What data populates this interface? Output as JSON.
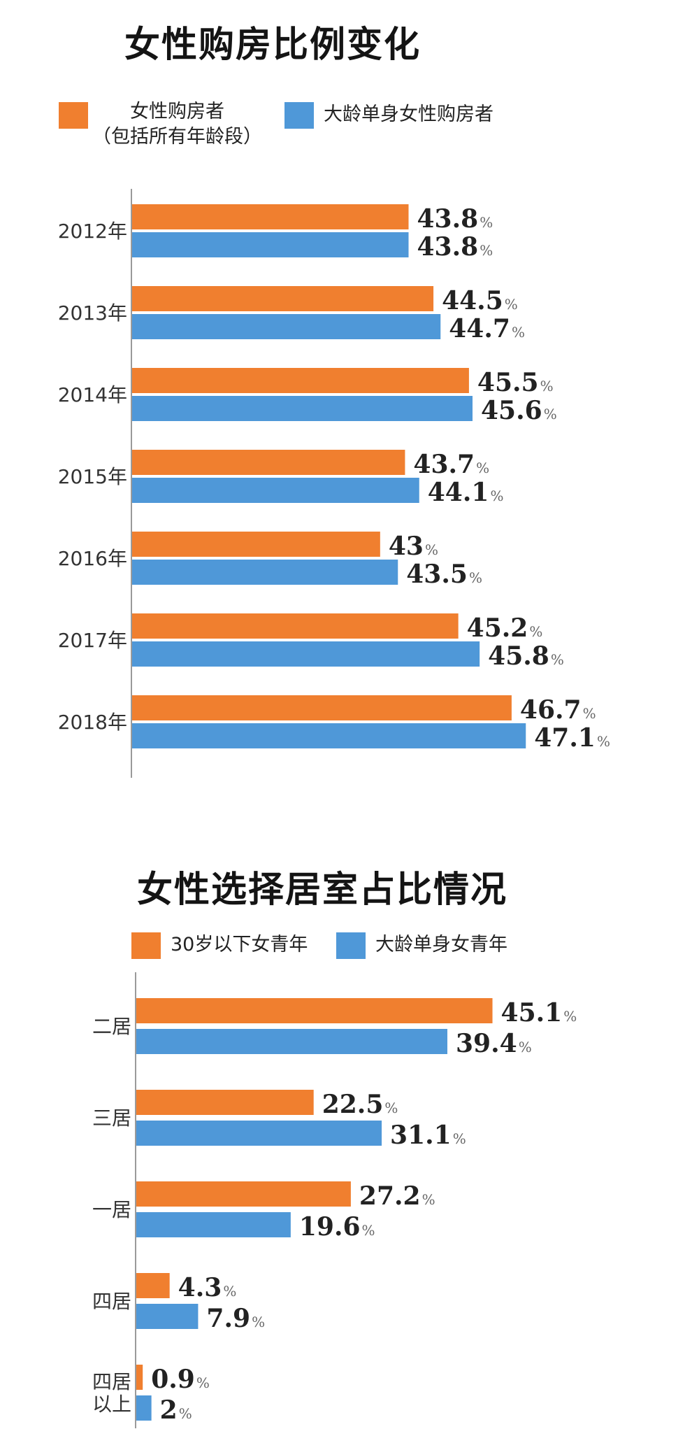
{
  "colors": {
    "orange": "#f07f2f",
    "blue": "#4f98d8",
    "axis": "#9a9a9a"
  },
  "chart_data": [
    {
      "type": "bar",
      "orientation": "horizontal",
      "title": "女性购房比例变化",
      "categories": [
        "2012年",
        "2013年",
        "2014年",
        "2015年",
        "2016年",
        "2017年",
        "2018年"
      ],
      "series": [
        {
          "name": "女性购房者（包括所有年龄段）",
          "legend_lines": [
            "女性购房者",
            "（包括所有年龄段）"
          ],
          "color": "#f07f2f",
          "values": [
            43.8,
            44.5,
            45.5,
            43.7,
            43,
            45.2,
            46.7
          ]
        },
        {
          "name": "大龄单身女性购房者",
          "legend_lines": [
            "大龄单身女性购房者"
          ],
          "color": "#4f98d8",
          "values": [
            43.8,
            44.7,
            45.6,
            44.1,
            43.5,
            45.8,
            47.1
          ]
        }
      ],
      "value_unit": "%",
      "xlim": [
        36,
        48
      ],
      "grid": false,
      "legend_position": "top"
    },
    {
      "type": "bar",
      "orientation": "horizontal",
      "title": "女性选择居室占比情况",
      "categories": [
        "二居",
        "三居",
        "一居",
        "四居",
        "四居以上"
      ],
      "category_lines": [
        [
          "二居"
        ],
        [
          "三居"
        ],
        [
          "一居"
        ],
        [
          "四居"
        ],
        [
          "四居",
          "以上"
        ]
      ],
      "series": [
        {
          "name": "30岁以下女青年",
          "legend_lines": [
            "30岁以下女青年"
          ],
          "color": "#f07f2f",
          "values": [
            45.1,
            22.5,
            27.2,
            4.3,
            0.9
          ]
        },
        {
          "name": "大龄单身女青年",
          "legend_lines": [
            "大龄单身女青年"
          ],
          "color": "#4f98d8",
          "values": [
            39.4,
            31.1,
            19.6,
            7.9,
            2
          ]
        }
      ],
      "value_unit": "%",
      "xlim": [
        0,
        50
      ],
      "grid": false,
      "legend_position": "top"
    }
  ]
}
